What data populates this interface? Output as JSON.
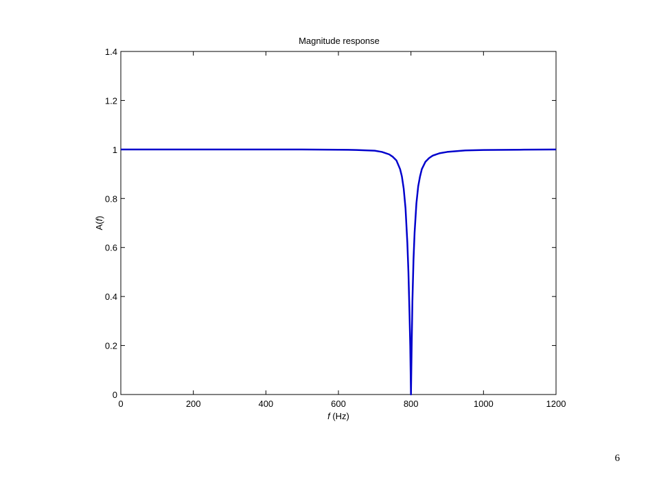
{
  "page_number": "6",
  "chart_data": {
    "type": "line",
    "title": "Magnitude response",
    "xlabel_italic": "f",
    "xlabel_rest": " (Hz)",
    "ylabel_prefix": "A(",
    "ylabel_italic": "f",
    "ylabel_suffix": ")",
    "xlim": [
      0,
      1200
    ],
    "ylim": [
      0,
      1.4
    ],
    "xticks": [
      0,
      200,
      400,
      600,
      800,
      1000,
      1200
    ],
    "xtick_labels": [
      "0",
      "200",
      "400",
      "600",
      "800",
      "1000",
      "1200"
    ],
    "yticks": [
      0,
      0.2,
      0.4,
      0.6,
      0.8,
      1,
      1.2,
      1.4
    ],
    "ytick_labels": [
      "0",
      "0.2",
      "0.4",
      "0.6",
      "0.8",
      "1",
      "1.2",
      "1.4"
    ],
    "grid": false,
    "line_color": "#0000cc",
    "series": [
      {
        "x": [
          0,
          100,
          200,
          300,
          400,
          500,
          600,
          650,
          700,
          720,
          740,
          750,
          760,
          770,
          775,
          780,
          785,
          790,
          793,
          796,
          798,
          799,
          800,
          801,
          802,
          804,
          807,
          810,
          815,
          820,
          825,
          830,
          840,
          850,
          860,
          880,
          900,
          950,
          1000,
          1100,
          1200
        ],
        "y": [
          1.0,
          1.0,
          1.0,
          1.0,
          1.0,
          1.0,
          0.999,
          0.998,
          0.995,
          0.99,
          0.98,
          0.97,
          0.955,
          0.92,
          0.89,
          0.84,
          0.76,
          0.62,
          0.5,
          0.33,
          0.2,
          0.1,
          0.0,
          0.1,
          0.2,
          0.38,
          0.55,
          0.66,
          0.78,
          0.85,
          0.89,
          0.92,
          0.95,
          0.965,
          0.975,
          0.985,
          0.99,
          0.996,
          0.998,
          0.999,
          1.0
        ]
      }
    ]
  }
}
